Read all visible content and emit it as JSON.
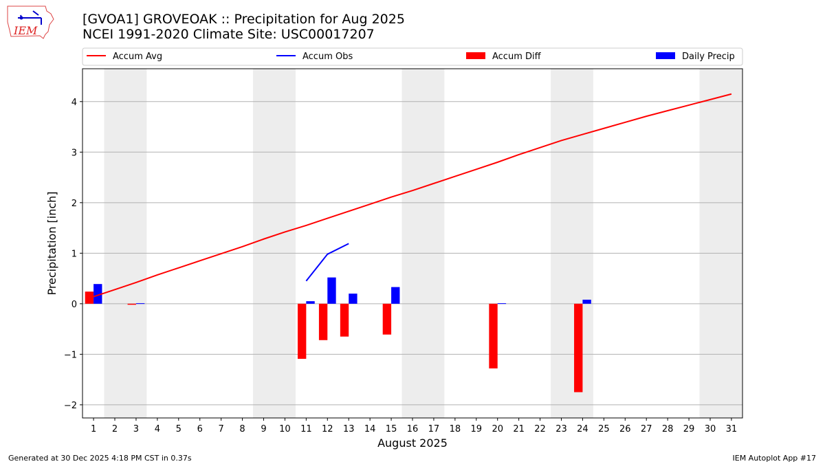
{
  "logo_text": "IEM",
  "title_line1": "[GVOA1] GROVEOAK :: Precipitation for Aug 2025",
  "title_line2": "NCEI 1991-2020 Climate Site: USC00017207",
  "footer_left": "Generated at 30 Dec 2025 4:18 PM CST in 0.37s",
  "footer_right": "IEM Autoplot App #17",
  "chart_data": {
    "type": "bar",
    "xlabel": "August 2025",
    "ylabel": "Precipitation [inch]",
    "xlim": [
      0.48,
      31.52
    ],
    "ylim": [
      -2.26,
      4.65
    ],
    "yticks": [
      -2,
      -1,
      0,
      1,
      2,
      3,
      4
    ],
    "ytick_labels": [
      "−2",
      "−1",
      "0",
      "1",
      "2",
      "3",
      "4"
    ],
    "x": [
      1,
      2,
      3,
      4,
      5,
      6,
      7,
      8,
      9,
      10,
      11,
      12,
      13,
      14,
      15,
      16,
      17,
      18,
      19,
      20,
      21,
      22,
      23,
      24,
      25,
      26,
      27,
      28,
      29,
      30,
      31
    ],
    "grid": "horizontal",
    "legend_placement": "top",
    "weekend_shading": [
      [
        2,
        3
      ],
      [
        9,
        10
      ],
      [
        16,
        17
      ],
      [
        23,
        24
      ],
      [
        30,
        31
      ]
    ],
    "colors": {
      "accum_avg": "#ff0000",
      "accum_obs": "#0000ff",
      "accum_diff": "#ff0000",
      "daily_precip": "#0000ff",
      "shade": "#ededed"
    },
    "series": [
      {
        "name": "Accum Avg",
        "kind": "line",
        "x": [
          1,
          2,
          3,
          4,
          5,
          6,
          7,
          8,
          9,
          10,
          11,
          12,
          13,
          14,
          15,
          16,
          17,
          18,
          19,
          20,
          21,
          22,
          23,
          24,
          25,
          26,
          27,
          28,
          29,
          30,
          31
        ],
        "values": [
          0.14,
          0.28,
          0.42,
          0.57,
          0.71,
          0.85,
          0.99,
          1.13,
          1.28,
          1.42,
          1.55,
          1.69,
          1.83,
          1.97,
          2.11,
          2.24,
          2.38,
          2.52,
          2.66,
          2.8,
          2.95,
          3.09,
          3.23,
          3.35,
          3.47,
          3.59,
          3.71,
          3.82,
          3.93,
          4.04,
          4.15
        ]
      },
      {
        "name": "Accum Obs",
        "kind": "line",
        "x": [
          11,
          12,
          13
        ],
        "values": [
          0.45,
          0.98,
          1.19
        ]
      },
      {
        "name": "Accum Diff",
        "kind": "bar",
        "x": [
          1,
          3,
          11,
          12,
          13,
          15,
          20,
          24
        ],
        "values": [
          0.24,
          -0.02,
          -1.09,
          -0.72,
          -0.65,
          -0.61,
          -1.28,
          -1.75
        ]
      },
      {
        "name": "Daily Precip",
        "kind": "bar",
        "x": [
          1,
          3,
          11,
          12,
          13,
          15,
          20,
          24
        ],
        "values": [
          0.39,
          0.01,
          0.05,
          0.52,
          0.2,
          0.33,
          0.01,
          0.08
        ]
      }
    ]
  }
}
